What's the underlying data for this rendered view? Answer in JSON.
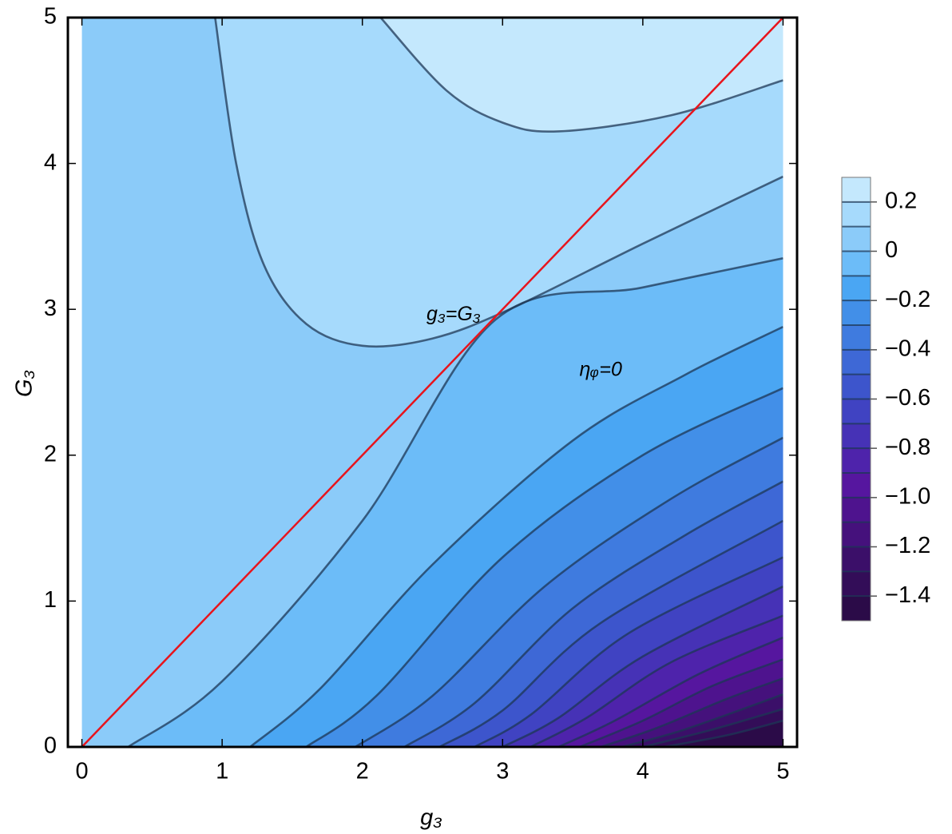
{
  "chart_data": {
    "type": "contour",
    "xlabel": "g₃",
    "ylabel": "G₃",
    "xlim": [
      -0.1,
      5.1
    ],
    "ylim": [
      0,
      5
    ],
    "xticks": [
      0,
      1,
      2,
      3,
      4,
      5
    ],
    "yticks": [
      0,
      1,
      2,
      3,
      4,
      5
    ],
    "contours": [
      {
        "level": 0.2,
        "x": [
          2.13,
          2.6,
          3.0,
          3.4,
          4.2,
          5
        ],
        "y": [
          5,
          4.5,
          4.28,
          4.22,
          4.33,
          4.57
        ]
      },
      {
        "level": 0.1,
        "x": [
          0.95,
          1.1,
          1.3,
          1.6,
          2.0,
          2.5,
          3.05,
          4,
          5
        ],
        "y": [
          5,
          4.0,
          3.3,
          2.9,
          2.75,
          2.8,
          3.0,
          3.45,
          3.91
        ]
      },
      {
        "level": 0,
        "x": [
          0.33,
          1,
          2,
          2.95,
          4,
          5
        ],
        "y": [
          0,
          0.45,
          1.55,
          2.93,
          3.15,
          3.35
        ]
      },
      {
        "level": -0.1,
        "x": [
          1.2,
          1.7,
          2.5,
          3.5,
          4.3,
          5
        ],
        "y": [
          0,
          0.4,
          1.25,
          2.1,
          2.55,
          2.88
        ]
      },
      {
        "level": -0.2,
        "x": [
          1.6,
          2.1,
          3,
          4,
          5
        ],
        "y": [
          0,
          0.35,
          1.3,
          2.0,
          2.46
        ]
      },
      {
        "level": -0.3,
        "x": [
          1.95,
          2.5,
          3.3,
          4.2,
          5
        ],
        "y": [
          0,
          0.35,
          1.1,
          1.7,
          2.12
        ]
      },
      {
        "level": -0.4,
        "x": [
          2.3,
          2.8,
          3.5,
          4.3,
          5
        ],
        "y": [
          0,
          0.3,
          0.95,
          1.45,
          1.82
        ]
      },
      {
        "level": -0.5,
        "x": [
          2.55,
          3.0,
          3.7,
          5
        ],
        "y": [
          0,
          0.25,
          0.85,
          1.55
        ]
      },
      {
        "level": -0.6,
        "x": [
          2.8,
          3.2,
          3.9,
          5
        ],
        "y": [
          0,
          0.22,
          0.78,
          1.3
        ]
      },
      {
        "level": -0.7,
        "x": [
          3.0,
          3.4,
          4.0,
          5
        ],
        "y": [
          0,
          0.2,
          0.62,
          1.1
        ]
      },
      {
        "level": -0.8,
        "x": [
          3.2,
          3.6,
          4.2,
          5
        ],
        "y": [
          0,
          0.2,
          0.58,
          0.9
        ]
      },
      {
        "level": -0.9,
        "x": [
          3.4,
          3.8,
          4.4,
          5
        ],
        "y": [
          0,
          0.18,
          0.5,
          0.75
        ]
      },
      {
        "level": -1.0,
        "x": [
          3.55,
          4.0,
          4.5,
          5
        ],
        "y": [
          0,
          0.18,
          0.42,
          0.6
        ]
      },
      {
        "level": -1.1,
        "x": [
          3.7,
          4.1,
          4.6,
          5
        ],
        "y": [
          0,
          0.13,
          0.33,
          0.47
        ]
      },
      {
        "level": -1.2,
        "x": [
          3.85,
          4.3,
          5
        ],
        "y": [
          0,
          0.12,
          0.36
        ]
      },
      {
        "level": -1.3,
        "x": [
          4.0,
          4.5,
          5
        ],
        "y": [
          0,
          0.12,
          0.26
        ]
      },
      {
        "level": -1.4,
        "x": [
          4.15,
          4.6,
          5
        ],
        "y": [
          0,
          0.08,
          0.18
        ]
      }
    ],
    "lines": [
      {
        "x": [
          0,
          5
        ],
        "y": [
          0,
          5
        ],
        "color": "#e8141c"
      }
    ],
    "annotations": [
      {
        "text": "g₃=G₃",
        "x": 2.65,
        "y": 2.96,
        "color": "#e8141c"
      },
      {
        "text": "ηᵩ=0",
        "x": 3.7,
        "y": 2.58,
        "color": "#ffffff"
      }
    ],
    "colorbar": {
      "lim": [
        -1.5,
        0.3
      ],
      "levels": [
        -1.5,
        -1.4,
        -1.3,
        -1.2,
        -1.1,
        -1.0,
        -0.9,
        -0.8,
        -0.7,
        -0.6,
        -0.5,
        -0.4,
        -0.3,
        -0.2,
        -0.1,
        0,
        0.1,
        0.2,
        0.3
      ],
      "colors": [
        "#2b0b48",
        "#330d58",
        "#3b0f69",
        "#45117c",
        "#4e138e",
        "#56169f",
        "#4e23ab",
        "#4632b6",
        "#4043c2",
        "#3d55cc",
        "#3e68d6",
        "#3f7bdf",
        "#428fe8",
        "#4aa6f3",
        "#6cbcf8",
        "#8bcbf9",
        "#a6dafc",
        "#c4e8fd"
      ],
      "ticks": [
        0.2,
        0,
        {
          "value": -0.2,
          "label": "−0.2"
        },
        {
          "value": -0.4,
          "label": "−0.4"
        },
        {
          "value": -0.6,
          "label": "−0.6"
        },
        {
          "value": -0.8,
          "label": "−0.8"
        },
        {
          "value": -1.0,
          "label": "−1.0"
        },
        {
          "value": -1.2,
          "label": "−1.2"
        },
        {
          "value": -1.4,
          "label": "−1.4"
        }
      ]
    }
  }
}
